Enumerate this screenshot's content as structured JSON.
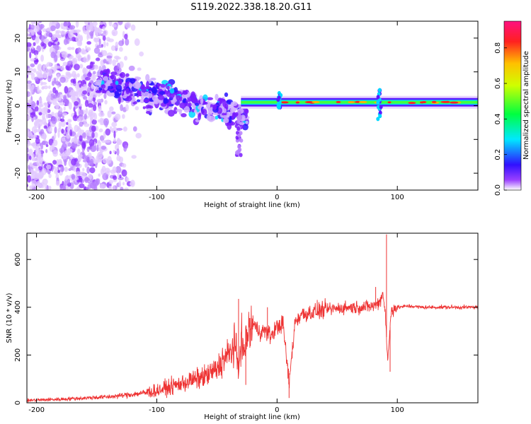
{
  "title": "S119.2022.338.18.20.G11",
  "chart_data": [
    {
      "type": "heatmap",
      "xlabel": "Height of straight line (km)",
      "ylabel": "Frequency (Hz)",
      "xlim": [
        -208,
        167
      ],
      "ylim": [
        -25,
        25
      ],
      "x_ticks": [
        -200,
        -100,
        0,
        100
      ],
      "x_tick_labels": [
        "-200",
        "-100",
        "0",
        "100"
      ],
      "y_ticks": [
        -20,
        -10,
        0,
        10,
        20
      ],
      "y_tick_labels": [
        "-20",
        "-10",
        "0",
        "10",
        "20"
      ],
      "colorbar": {
        "label": "Normalized spectral amplitude",
        "range": [
          0,
          0.95
        ],
        "ticks": [
          0,
          0.2,
          0.4,
          0.6,
          0.8
        ],
        "tick_labels": [
          "0.0",
          "0.2",
          "0.4",
          "0.6",
          "0.8"
        ]
      },
      "features": {
        "noise_region_x": [
          -208,
          -110
        ],
        "scatter_band": {
          "x": [
            -150,
            -25
          ],
          "freq_start_hz": 7,
          "freq_end_hz": -3
        },
        "dip_tail": {
          "x": -32,
          "freq_hz": -13
        },
        "carrier_line": {
          "x": [
            -30,
            167
          ],
          "freq_hz": 1
        },
        "disturbance_x": 85
      },
      "grid": false
    },
    {
      "type": "line",
      "xlabel": "Height of straight line (km)",
      "ylabel": "SNR (10 * v/v)",
      "xlim": [
        -208,
        167
      ],
      "ylim": [
        0,
        710
      ],
      "x_ticks": [
        -200,
        -100,
        0,
        100
      ],
      "x_tick_labels": [
        "-200",
        "-100",
        "0",
        "100"
      ],
      "y_ticks": [
        0,
        200,
        400,
        600
      ],
      "y_tick_labels": [
        "0",
        "200",
        "400",
        "600"
      ],
      "color": "#ee3333",
      "series": [
        {
          "x": [
            -208,
            -180,
            -160,
            -140,
            -120,
            -100,
            -90,
            -80,
            -70,
            -60,
            -50,
            -45,
            -40,
            -35,
            -32,
            -30,
            -28,
            -25,
            -20,
            -15,
            -10,
            -5,
            0,
            5,
            10,
            15,
            20,
            30,
            40,
            50,
            60,
            70,
            80,
            85,
            88,
            90,
            92,
            95,
            100,
            110,
            120,
            140,
            167
          ],
          "y": [
            10,
            15,
            20,
            25,
            35,
            50,
            65,
            80,
            95,
            110,
            140,
            180,
            200,
            250,
            120,
            300,
            200,
            280,
            330,
            300,
            300,
            280,
            320,
            330,
            80,
            340,
            370,
            380,
            390,
            395,
            400,
            400,
            405,
            420,
            460,
            380,
            170,
            390,
            400,
            405,
            400,
            400,
            400
          ],
          "spikes": [
            {
              "x": -32,
              "y": 435
            },
            {
              "x": -26,
              "y": 75
            },
            {
              "x": -8,
              "y": 400
            },
            {
              "x": 10,
              "y": 20
            },
            {
              "x": 82,
              "y": 485
            },
            {
              "x": 91,
              "y": 705
            },
            {
              "x": 94,
              "y": 130
            }
          ]
        }
      ],
      "grid": false
    }
  ]
}
